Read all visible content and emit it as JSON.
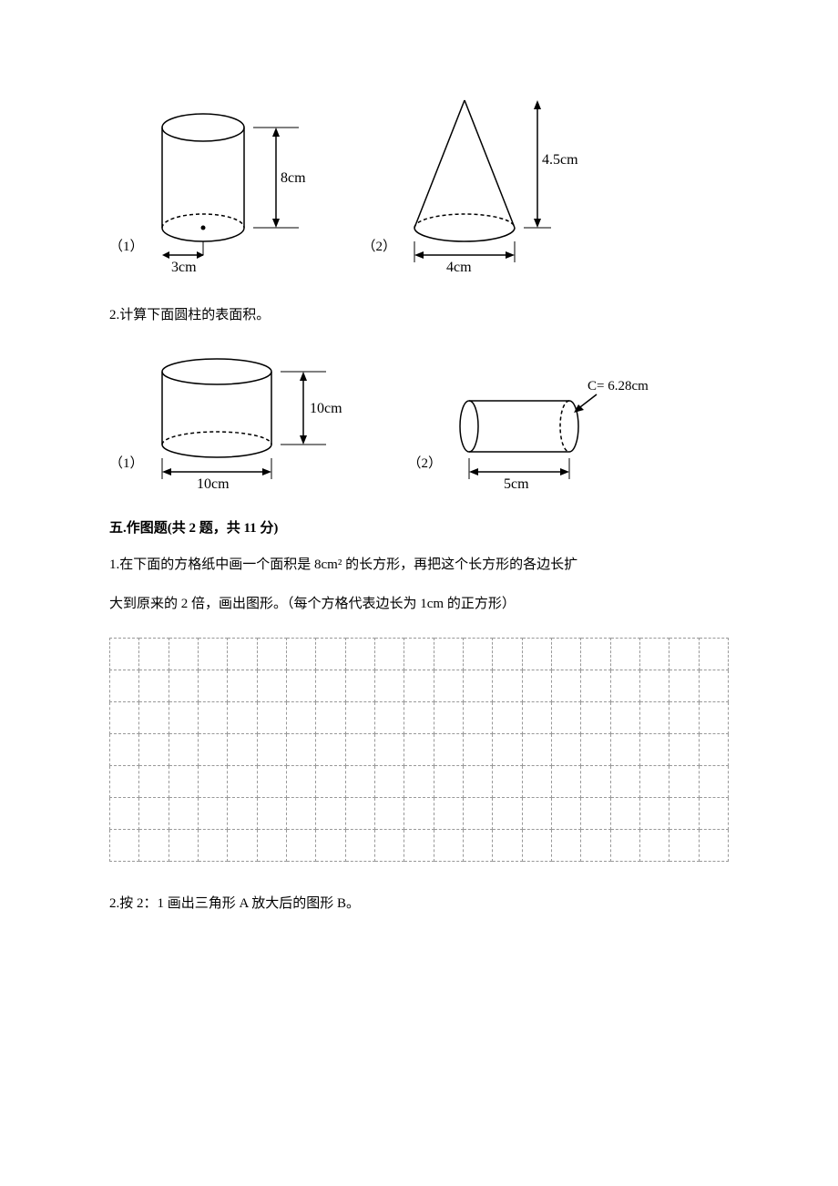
{
  "figures1": {
    "item1_label": "（1）",
    "item2_label": "（2）",
    "cylinder1": {
      "height_label": "8cm",
      "radius_label": "3cm",
      "stroke": "#000000",
      "fill": "#ffffff"
    },
    "cone": {
      "height_label": "4.5cm",
      "diameter_label": "4cm",
      "stroke": "#000000"
    }
  },
  "q2_text": "2.计算下面圆柱的表面积。",
  "figures2": {
    "item1_label": "（1）",
    "item2_label": "（2）",
    "cylinder2": {
      "height_label": "10cm",
      "diameter_label": "10cm",
      "stroke": "#000000"
    },
    "cylinder3": {
      "circumference_label": "C= 6.28cm",
      "length_label": "5cm",
      "stroke": "#000000"
    }
  },
  "section5_title": "五.作图题(共 2 题，共 11 分)",
  "q5_1_line1": "1.在下面的方格纸中画一个面积是 8cm² 的长方形，再把这个长方形的各边长扩",
  "q5_1_line2": "大到原来的 2 倍，画出图形。（每个方格代表边长为 1cm 的正方形）",
  "grid": {
    "rows": 7,
    "cols": 21,
    "border_color": "#999999"
  },
  "q5_2_text": "2.按 2：1 画出三角形 A 放大后的图形 B。"
}
